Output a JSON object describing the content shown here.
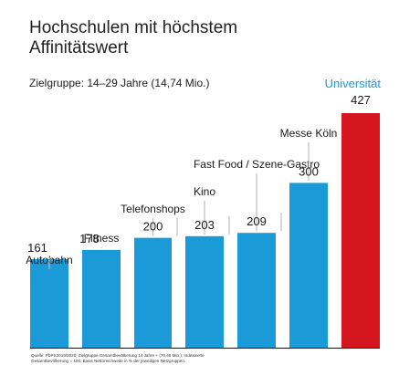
{
  "header": {
    "title_line1": "Hochschulen mit höchstem",
    "title_line2": "Affinitätswert",
    "subtitle": "Zielgruppe: 14–29 Jahre (14,74 Mio.)"
  },
  "highlight_label": "Universität",
  "source_line1": "Quelle: PbPS2019/2020; Zielgruppe Gesamtbevölkerung 14 Jahre + (70,45 Mio.); Indexwerte",
  "source_line2": "Gesamtbevölkerung = 100; Basis Nettoreichweite in % der jeweiligen Netzgruppen.",
  "colors": {
    "bar": "#1a9ad6",
    "highlight_bar": "#d6161f",
    "highlight_text": "#1a9ad6",
    "leader": "#bdbdbd",
    "baseline": "#111111"
  },
  "chart_data": {
    "type": "bar",
    "title": "Hochschulen mit höchstem Affinitätswert",
    "subtitle": "Zielgruppe: 14–29 Jahre (14,74 Mio.)",
    "categories": [
      "Autobahn",
      "Fitness",
      "Telefonshops",
      "Kino",
      "Fast Food / Szene-Gastro",
      "Messe Köln",
      "Universität"
    ],
    "values": [
      161,
      178,
      200,
      203,
      209,
      300,
      427
    ],
    "value_labels": [
      "161",
      "178",
      "200",
      "203",
      "209",
      "300",
      "427"
    ],
    "highlight_index": 6,
    "xlabel": "",
    "ylabel": "",
    "ylim": [
      0,
      427
    ],
    "grid": false,
    "legend": "none"
  }
}
